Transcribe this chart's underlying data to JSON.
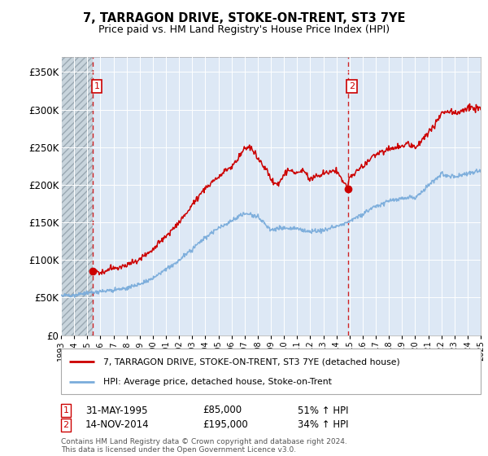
{
  "title": "7, TARRAGON DRIVE, STOKE-ON-TRENT, ST3 7YE",
  "subtitle": "Price paid vs. HM Land Registry's House Price Index (HPI)",
  "ylim": [
    0,
    370000
  ],
  "yticks": [
    0,
    50000,
    100000,
    150000,
    200000,
    250000,
    300000,
    350000
  ],
  "ytick_labels": [
    "£0",
    "£50K",
    "£100K",
    "£150K",
    "£200K",
    "£250K",
    "£300K",
    "£350K"
  ],
  "sale1_date": 1995.42,
  "sale1_price": 85000,
  "sale1_label": "1",
  "sale2_date": 2014.87,
  "sale2_price": 195000,
  "sale2_label": "2",
  "legend_line1": "7, TARRAGON DRIVE, STOKE-ON-TRENT, ST3 7YE (detached house)",
  "legend_line2": "HPI: Average price, detached house, Stoke-on-Trent",
  "fn1_date": "31-MAY-1995",
  "fn1_price": "£85,000",
  "fn1_hpi": "51% ↑ HPI",
  "fn2_date": "14-NOV-2014",
  "fn2_price": "£195,000",
  "fn2_hpi": "34% ↑ HPI",
  "copyright": "Contains HM Land Registry data © Crown copyright and database right 2024.\nThis data is licensed under the Open Government Licence v3.0.",
  "plot_bg_color": "#dde8f5",
  "hatch_bg_color": "#c8d4dc",
  "line_red": "#cc0000",
  "line_blue": "#7aacdb",
  "grid_color": "#ffffff",
  "box_color": "#cc0000",
  "hpi_years": [
    1993,
    1994,
    1995,
    1996,
    1997,
    1998,
    1999,
    2000,
    2001,
    2002,
    2003,
    2004,
    2005,
    2006,
    2007,
    2008,
    2009,
    2010,
    2011,
    2012,
    2013,
    2014,
    2015,
    2016,
    2017,
    2018,
    2019,
    2020,
    2021,
    2022,
    2023,
    2024,
    2025
  ],
  "hpi_vals": [
    53000,
    54000,
    56000,
    58000,
    60000,
    63000,
    68000,
    76000,
    87000,
    100000,
    115000,
    130000,
    142000,
    152000,
    162000,
    158000,
    140000,
    143000,
    142000,
    138000,
    140000,
    145000,
    152000,
    161000,
    172000,
    178000,
    182000,
    183000,
    198000,
    215000,
    210000,
    215000,
    220000
  ],
  "pp_years": [
    1995.42,
    1996,
    1997,
    1998,
    1999,
    2000,
    2001,
    2002,
    2003,
    2004,
    2005,
    2006,
    2007,
    2007.5,
    2008,
    2008.5,
    2009,
    2009.5,
    2010,
    2010.5,
    2011,
    2011.5,
    2012,
    2012.5,
    2013,
    2013.5,
    2014,
    2014.87,
    2015,
    2016,
    2017,
    2018,
    2019,
    2019.5,
    2020,
    2021,
    2021.5,
    2022,
    2022.5,
    2023,
    2023.5,
    2024,
    2025
  ],
  "pp_vals": [
    85000,
    83000,
    90000,
    93000,
    100000,
    114000,
    131000,
    150000,
    172000,
    196000,
    210000,
    225000,
    248000,
    250000,
    235000,
    225000,
    208000,
    200000,
    213000,
    220000,
    215000,
    220000,
    208000,
    210000,
    215000,
    218000,
    220000,
    195000,
    210000,
    225000,
    240000,
    248000,
    250000,
    255000,
    248000,
    270000,
    278000,
    295000,
    300000,
    295000,
    298000,
    303000,
    300000
  ]
}
